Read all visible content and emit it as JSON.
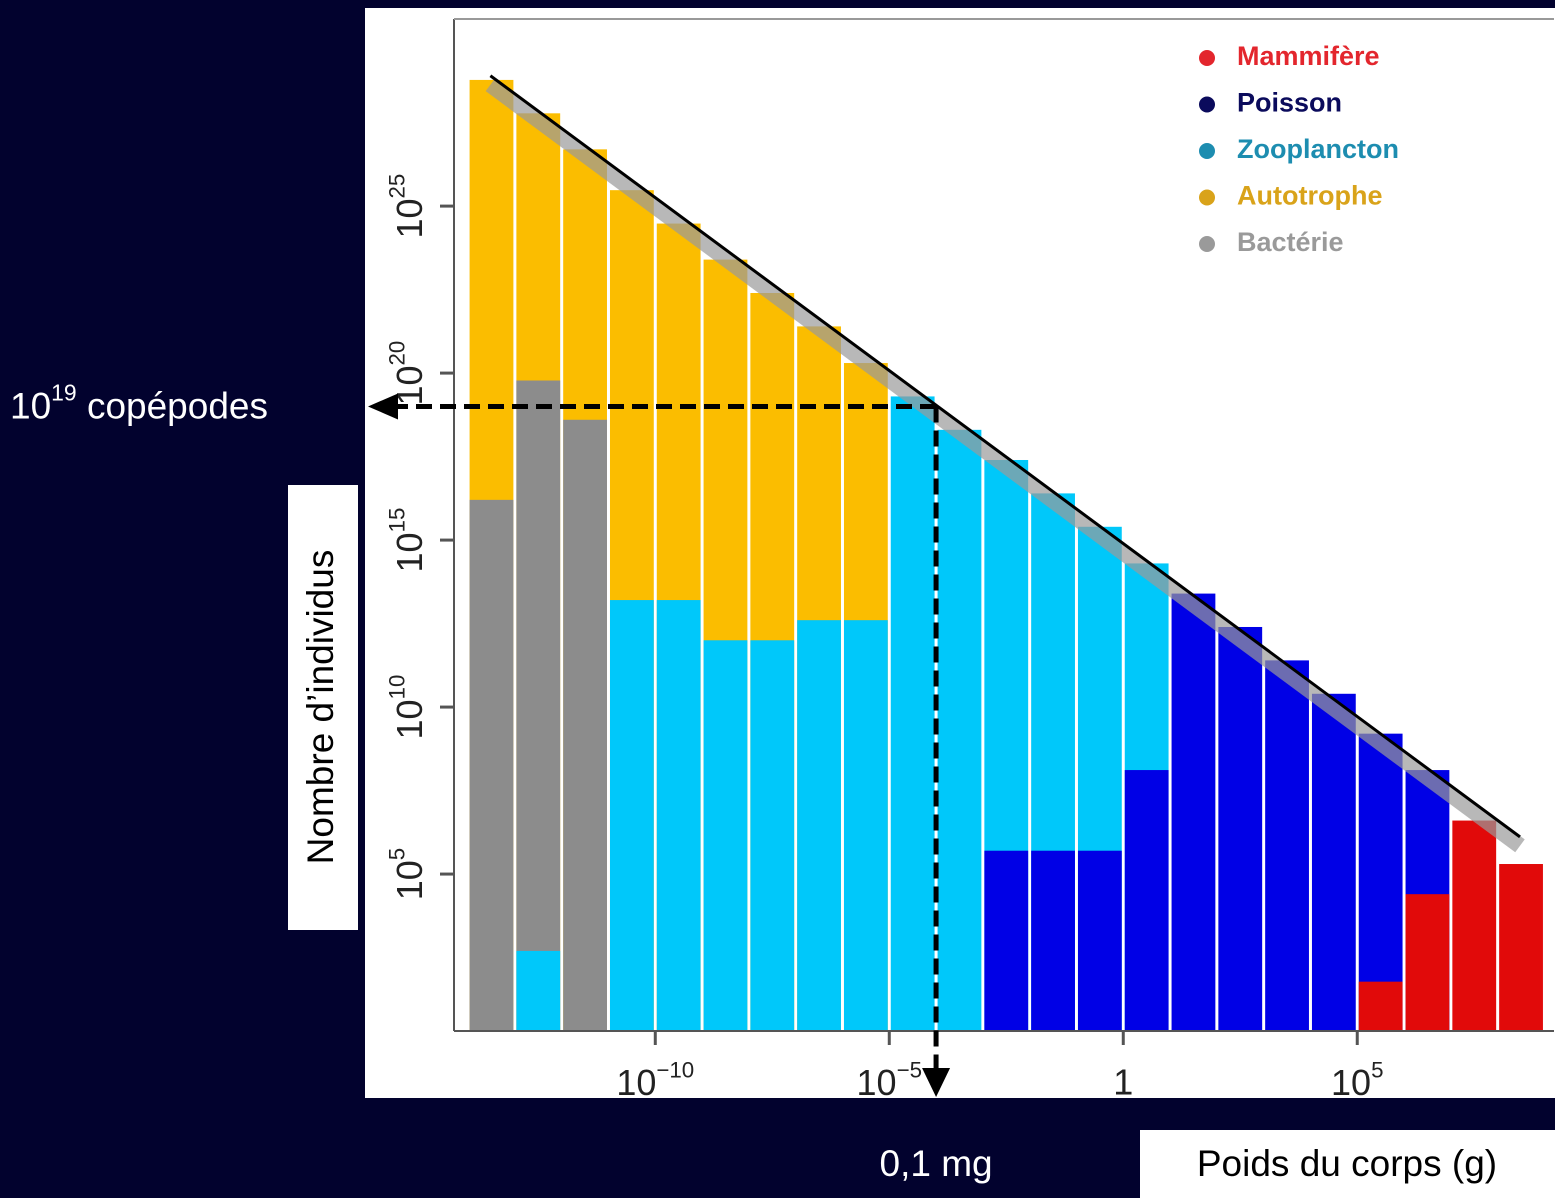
{
  "chart_data": {
    "type": "histogram",
    "log_x": true,
    "log_y": true,
    "y_label": "Nombre d’individus",
    "x_label": "Poids du corps (g)",
    "bins": [
      1e-14,
      1e-13,
      1e-12,
      1e-11,
      1e-10,
      1e-09,
      1e-08,
      1e-07,
      1e-06,
      1e-05,
      0.0001,
      0.001,
      0.01,
      0.1,
      1,
      10,
      100,
      1000,
      10000.0,
      100000.0,
      1000000.0,
      10000000.0,
      100000000.0,
      1000000000.0
    ],
    "xlim": [
      5e-15,
      1600000000.0
    ],
    "ylim": [
      2,
      4e+30
    ],
    "xticks": [
      {
        "value": 1e-10,
        "label": "10^−10"
      },
      {
        "value": 1e-05,
        "label": "10^−5"
      },
      1,
      {
        "value": 100000.0,
        "label": "10^5"
      }
    ],
    "yticks": [
      {
        "value": 100000.0,
        "label": "10^5"
      },
      {
        "value": 10000000000.0,
        "label": "10^10"
      },
      {
        "value": 1000000000000000.0,
        "label": "10^15"
      },
      {
        "value": 1e+20,
        "label": "10^20"
      },
      {
        "value": 1e+25,
        "label": "10^25"
      }
    ],
    "legend": "upper right",
    "series": [
      {
        "name": "Mammifère",
        "color": "#e10a0a",
        "legend_color": "#e3262d",
        "values": [
          null,
          null,
          null,
          null,
          null,
          null,
          null,
          null,
          null,
          null,
          null,
          null,
          null,
          null,
          null,
          null,
          null,
          null,
          null,
          60,
          25000.0,
          4000000.0,
          200000.0
        ]
      },
      {
        "name": "Poisson",
        "color": "#0000e6",
        "legend_color": "#0b0b5c",
        "values": [
          null,
          null,
          null,
          null,
          null,
          null,
          null,
          null,
          null,
          null,
          null,
          500000.0,
          500000.0,
          500000.0,
          130000000.0,
          25000000000000.0,
          2500000000000.0,
          250000000000.0,
          25000000000.0,
          1600000000.0,
          130000000.0,
          null,
          null
        ]
      },
      {
        "name": "Zooplancton",
        "color": "#00c8fa",
        "legend_color": "#1d8db0",
        "values": [
          null,
          500,
          null,
          16000000000000.0,
          16000000000000.0,
          1000000000000.0,
          1000000000000.0,
          4000000000000.0,
          4000000000000.0,
          2e+19,
          2e+18,
          2.5e+17,
          2.5e+16,
          2500000000000000.0,
          200000000000000.0,
          null,
          null,
          null,
          null,
          null,
          null,
          null,
          null
        ]
      },
      {
        "name": "Autotrophe",
        "color": "#fbbd00",
        "legend_color": "#d9a31a",
        "values": [
          6e+28,
          6e+27,
          5e+26,
          3e+25,
          3e+24,
          2.5e+23,
          2.5e+22,
          2.5e+21,
          2e+20,
          null,
          null,
          null,
          null,
          null,
          null,
          null,
          null,
          null,
          null,
          null,
          null,
          null,
          null
        ]
      },
      {
        "name": "Bactérie",
        "color": "#8c8c8c",
        "legend_color": "#9a9a9a",
        "values": [
          1.6e+16,
          6e+19,
          4e+18,
          null,
          null,
          null,
          null,
          null,
          null,
          null,
          null,
          null,
          null,
          null,
          null,
          null,
          null,
          null,
          null,
          null,
          null,
          null,
          null
        ]
      }
    ],
    "fit_line": {
      "color": "#000000",
      "x": [
        3e-14,
        300000000.0
      ],
      "y": [
        8e+28,
        1300000.0
      ]
    },
    "annotation": {
      "x": 0.0001,
      "y": 1e+19,
      "x_label": "0,1 mg",
      "y_label": "10^19 copépodes"
    }
  }
}
